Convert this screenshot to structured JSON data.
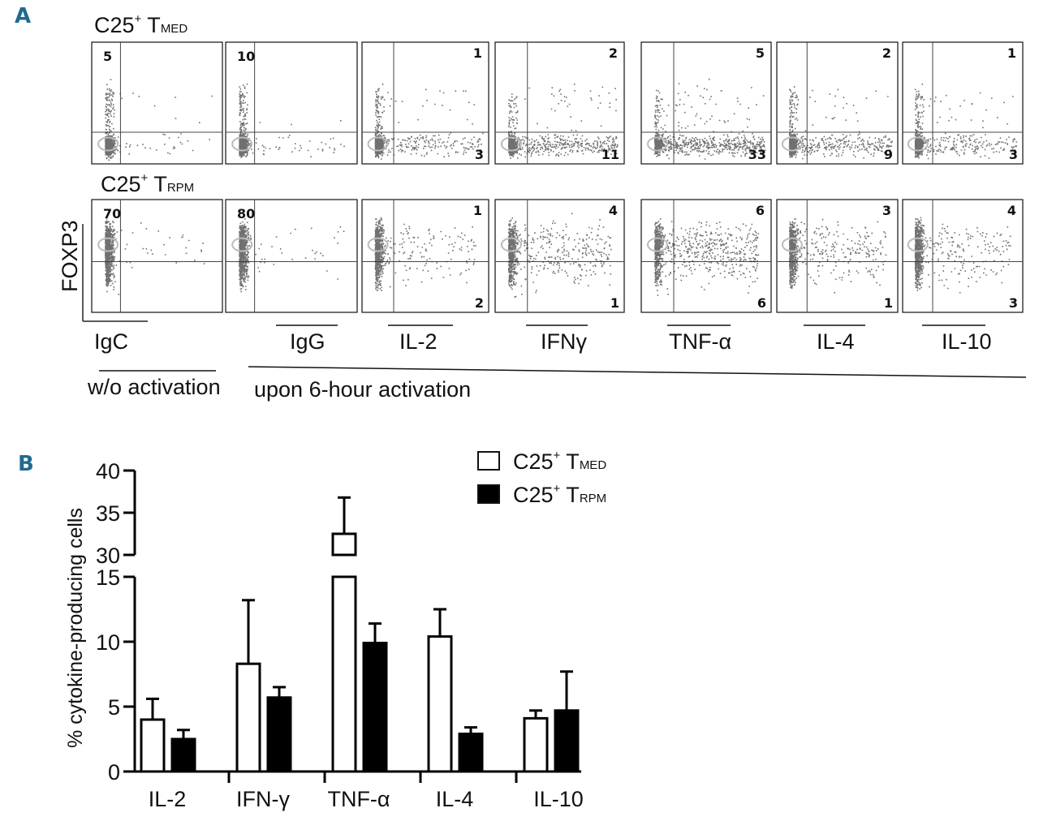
{
  "panel_a": {
    "letter": "A",
    "row_titles": [
      {
        "prefix": "C25",
        "sup": "+",
        "main": " T",
        "sub": "MED"
      },
      {
        "prefix": "C25",
        "sup": "+",
        "main": " T",
        "sub": "RPM"
      }
    ],
    "y_axis_label": "FOXP3",
    "stains": [
      "IgC",
      "IgG",
      "IL-2",
      "IFNγ",
      "TNF-α",
      "IL-4",
      "IL-10"
    ],
    "group_labels": {
      "without": "w/o activation",
      "upon": "upon 6-hour activation"
    },
    "quadrants": {
      "tmed": [
        {
          "tl": "5",
          "tr": "",
          "br": ""
        },
        {
          "tl": "10",
          "tr": "",
          "br": ""
        },
        {
          "tl": "",
          "tr": "1",
          "br": "3"
        },
        {
          "tl": "",
          "tr": "2",
          "br": "11"
        },
        {
          "tl": "",
          "tr": "5",
          "br": "33"
        },
        {
          "tl": "",
          "tr": "2",
          "br": "9"
        },
        {
          "tl": "",
          "tr": "1",
          "br": "3"
        }
      ],
      "trpm": [
        {
          "tl": "70",
          "tr": "",
          "br": ""
        },
        {
          "tl": "80",
          "tr": "",
          "br": ""
        },
        {
          "tl": "",
          "tr": "1",
          "br": "2"
        },
        {
          "tl": "",
          "tr": "4",
          "br": "1"
        },
        {
          "tl": "",
          "tr": "6",
          "br": "6"
        },
        {
          "tl": "",
          "tr": "3",
          "br": "1"
        },
        {
          "tl": "",
          "tr": "4",
          "br": "3"
        }
      ]
    }
  },
  "panel_b": {
    "letter": "B",
    "legend": [
      {
        "prefix": "C25",
        "sup": "+",
        "main": " T",
        "sub": "MED",
        "fill": "#ffffff"
      },
      {
        "prefix": "C25",
        "sup": "+",
        "main": " T",
        "sub": "RPM",
        "fill": "#000000"
      }
    ]
  },
  "chart_data": {
    "type": "bar",
    "categories": [
      "IL-2",
      "IFN-γ",
      "TNF-α",
      "IL-4",
      "IL-10"
    ],
    "series": [
      {
        "values": [
          4.0,
          8.3,
          32.5,
          10.4,
          4.1
        ],
        "errors": [
          1.6,
          4.9,
          4.3,
          2.1,
          0.6
        ],
        "color": "#ffffff"
      },
      {
        "values": [
          2.5,
          5.7,
          9.9,
          2.9,
          4.7
        ],
        "errors": [
          0.7,
          0.8,
          1.5,
          0.5,
          3.0
        ],
        "color": "#000000"
      }
    ],
    "ylabel": "% cytokine-producing cells",
    "y_lower_range": [
      0,
      15
    ],
    "y_upper_range": [
      30,
      40
    ],
    "y_ticks_lower": [
      "0",
      "5",
      "10",
      "15"
    ],
    "y_ticks_upper": [
      "30",
      "35",
      "40"
    ],
    "broken_axis": true,
    "grid": false,
    "legend_position": "top-right"
  }
}
